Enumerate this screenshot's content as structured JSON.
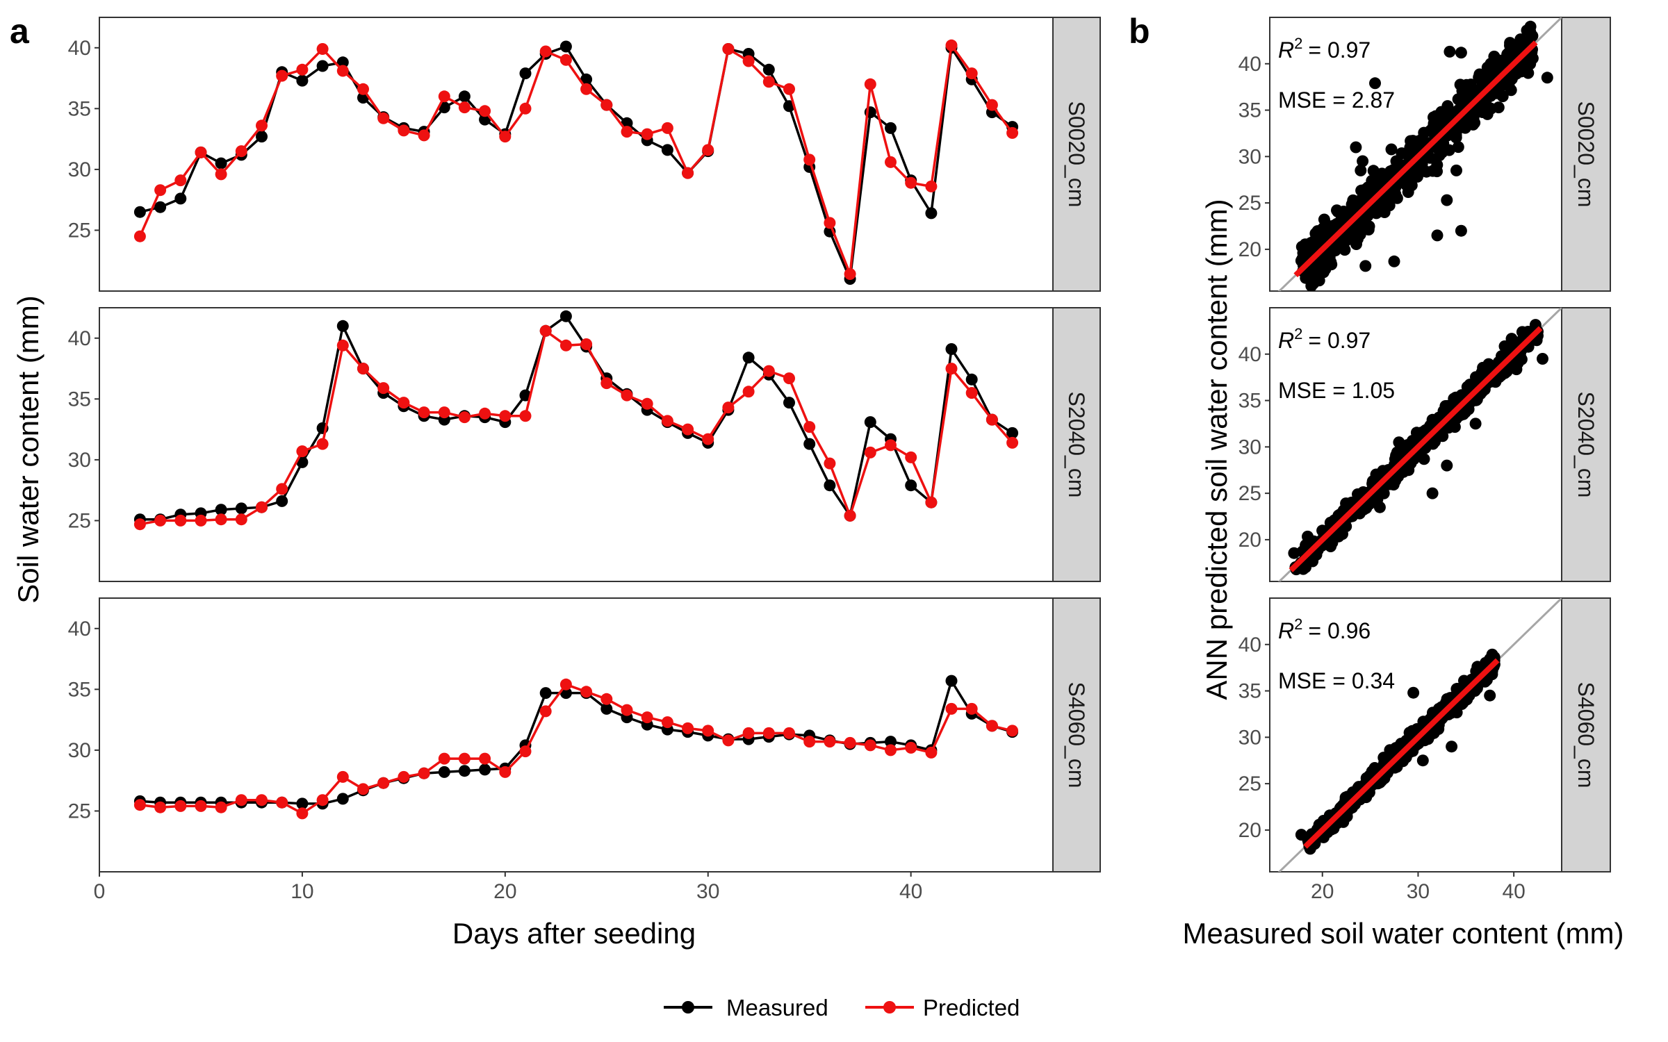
{
  "chart_data": [
    {
      "type": "line",
      "panel_label": "a",
      "xlabel": "Days after seeding",
      "ylabel": "Soil water content (mm)",
      "xlim": [
        0,
        47
      ],
      "ylim": [
        20,
        42.5
      ],
      "x_ticks": [
        0,
        10,
        20,
        30,
        40
      ],
      "y_ticks": [
        25,
        30,
        35,
        40
      ],
      "grid": false,
      "legend": "bottom",
      "legend_entries": [
        {
          "name": "Measured",
          "color": "#000000"
        },
        {
          "name": "Predicted",
          "color": "#ee1111"
        }
      ],
      "facets": [
        {
          "strip": "S0020_cm",
          "x": [
            2,
            3,
            4,
            5,
            6,
            7,
            8,
            9,
            10,
            11,
            12,
            13,
            14,
            15,
            16,
            17,
            18,
            19,
            20,
            21,
            22,
            23,
            24,
            25,
            26,
            27,
            28,
            29,
            30,
            31,
            32,
            33,
            34,
            35,
            36,
            37,
            38,
            39,
            40,
            41,
            42,
            43,
            44,
            45
          ],
          "series": [
            {
              "name": "Measured",
              "values": [
                26.5,
                26.9,
                27.6,
                31.4,
                30.5,
                31.2,
                32.7,
                38.0,
                37.3,
                38.5,
                38.8,
                35.9,
                34.3,
                33.4,
                33.1,
                35.1,
                36.0,
                34.1,
                32.9,
                37.9,
                39.5,
                40.1,
                37.4,
                35.3,
                33.8,
                32.4,
                31.6,
                29.7,
                31.5,
                39.9,
                39.5,
                38.2,
                35.2,
                30.2,
                24.9,
                21.0,
                34.7,
                33.4,
                29.1,
                26.4,
                40.0,
                37.4,
                34.7,
                33.5
              ]
            },
            {
              "name": "Predicted",
              "values": [
                24.5,
                28.3,
                29.1,
                31.4,
                29.6,
                31.5,
                33.6,
                37.7,
                38.2,
                39.9,
                38.1,
                36.6,
                34.2,
                33.2,
                32.8,
                36.0,
                35.1,
                34.8,
                32.7,
                35.0,
                39.7,
                39.0,
                36.6,
                35.3,
                33.1,
                32.9,
                33.4,
                29.7,
                31.6,
                39.9,
                38.9,
                37.2,
                36.6,
                30.8,
                25.6,
                21.4,
                37.0,
                30.6,
                28.9,
                28.6,
                40.2,
                37.9,
                35.3,
                33.0
              ]
            }
          ]
        },
        {
          "strip": "S2040_cm",
          "x": [
            2,
            3,
            4,
            5,
            6,
            7,
            8,
            9,
            10,
            11,
            12,
            13,
            14,
            15,
            16,
            17,
            18,
            19,
            20,
            21,
            22,
            23,
            24,
            25,
            26,
            27,
            28,
            29,
            30,
            31,
            32,
            33,
            34,
            35,
            36,
            37,
            38,
            39,
            40,
            41,
            42,
            43,
            44,
            45
          ],
          "series": [
            {
              "name": "Measured",
              "values": [
                25.1,
                25.1,
                25.5,
                25.6,
                25.9,
                26.0,
                26.1,
                26.6,
                29.8,
                32.6,
                41.0,
                37.5,
                35.5,
                34.4,
                33.6,
                33.3,
                33.6,
                33.5,
                33.1,
                35.3,
                40.6,
                41.8,
                39.3,
                36.7,
                35.4,
                34.1,
                33.1,
                32.2,
                31.4,
                34.1,
                38.4,
                37.0,
                34.7,
                31.3,
                27.9,
                25.4,
                33.1,
                31.7,
                27.9,
                26.5,
                39.1,
                36.6,
                33.3,
                32.2
              ]
            },
            {
              "name": "Predicted",
              "values": [
                24.7,
                25.0,
                25.0,
                25.0,
                25.1,
                25.1,
                26.1,
                27.6,
                30.7,
                31.3,
                39.4,
                37.5,
                35.9,
                34.7,
                33.9,
                33.9,
                33.5,
                33.8,
                33.6,
                33.6,
                40.6,
                39.4,
                39.5,
                36.3,
                35.3,
                34.6,
                33.2,
                32.5,
                31.7,
                34.3,
                35.6,
                37.3,
                36.7,
                32.7,
                29.7,
                25.4,
                30.6,
                31.2,
                30.2,
                26.5,
                37.5,
                35.5,
                33.3,
                31.4
              ]
            }
          ]
        },
        {
          "strip": "S4060_cm",
          "x": [
            2,
            3,
            4,
            5,
            6,
            7,
            8,
            9,
            10,
            11,
            12,
            13,
            14,
            15,
            16,
            17,
            18,
            19,
            20,
            21,
            22,
            23,
            24,
            25,
            26,
            27,
            28,
            29,
            30,
            31,
            32,
            33,
            34,
            35,
            36,
            37,
            38,
            39,
            40,
            41,
            42,
            43,
            44,
            45
          ],
          "series": [
            {
              "name": "Measured",
              "values": [
                25.8,
                25.7,
                25.7,
                25.7,
                25.7,
                25.7,
                25.7,
                25.7,
                25.6,
                25.6,
                26.0,
                26.7,
                27.3,
                27.7,
                28.1,
                28.2,
                28.3,
                28.4,
                28.5,
                30.4,
                34.7,
                34.7,
                34.7,
                33.4,
                32.7,
                32.1,
                31.7,
                31.5,
                31.2,
                30.9,
                30.9,
                31.1,
                31.3,
                31.2,
                30.8,
                30.5,
                30.6,
                30.7,
                30.4,
                30.0,
                35.7,
                33.0,
                32.0,
                31.5
              ]
            },
            {
              "name": "Predicted",
              "values": [
                25.5,
                25.3,
                25.4,
                25.4,
                25.3,
                25.9,
                25.9,
                25.7,
                24.8,
                25.9,
                27.8,
                26.8,
                27.3,
                27.8,
                28.1,
                29.3,
                29.3,
                29.3,
                28.2,
                29.9,
                33.2,
                35.4,
                34.8,
                34.2,
                33.3,
                32.7,
                32.3,
                31.8,
                31.6,
                30.8,
                31.4,
                31.4,
                31.4,
                30.7,
                30.7,
                30.6,
                30.4,
                30.0,
                30.2,
                29.8,
                33.4,
                33.4,
                32.0,
                31.6
              ]
            }
          ]
        }
      ]
    },
    {
      "type": "scatter",
      "panel_label": "b",
      "xlabel": "Measured soil water content (mm)",
      "ylabel": "ANN predicted soil water content (mm)",
      "xlim": [
        14.5,
        45
      ],
      "ylim": [
        15.5,
        45
      ],
      "x_ticks": [
        20,
        30,
        40
      ],
      "y_ticks": [
        20,
        25,
        30,
        35,
        40
      ],
      "grid": false,
      "facets": [
        {
          "strip": "S0020_cm",
          "r2_label": "= 0.97",
          "mse_label": "MSE = 2.87",
          "x_range": [
            17.5,
            42
          ],
          "spread": 1.6,
          "outliers": [
            [
              23.5,
              31.0
            ],
            [
              24.2,
              29.5
            ],
            [
              24.0,
              28.5
            ],
            [
              25.5,
              27.0
            ],
            [
              33.3,
              41.3
            ],
            [
              34.5,
              41.2
            ],
            [
              25.5,
              37.9
            ],
            [
              33.0,
              25.3
            ],
            [
              34.5,
              22.0
            ],
            [
              32.0,
              21.5
            ],
            [
              27.5,
              18.7
            ],
            [
              24.5,
              18.2
            ],
            [
              23.8,
              22.5
            ],
            [
              26.5,
              24.0
            ],
            [
              43.5,
              38.5
            ],
            [
              41.5,
              39.0
            ],
            [
              34.0,
              28.5
            ]
          ]
        },
        {
          "strip": "S2040_cm",
          "r2_label": "= 0.97",
          "mse_label": "MSE = 1.05",
          "x_range": [
            17,
            42.5
          ],
          "spread": 0.9,
          "outliers": [
            [
              31.5,
              25.0
            ],
            [
              28.0,
              30.5
            ],
            [
              29.0,
              27.5
            ],
            [
              33.0,
              28.0
            ],
            [
              26.0,
              23.5
            ],
            [
              36.0,
              32.5
            ],
            [
              43.0,
              39.5
            ]
          ]
        },
        {
          "strip": "S4060_cm",
          "r2_label": "= 0.96",
          "mse_label": "MSE = 0.34",
          "x_range": [
            18.5,
            38
          ],
          "spread": 0.7,
          "outliers": [
            [
              29.5,
              34.8
            ],
            [
              25.3,
              26.0
            ],
            [
              30.5,
              27.5
            ],
            [
              17.8,
              19.5
            ],
            [
              33.5,
              29.0
            ],
            [
              37.5,
              34.5
            ]
          ]
        }
      ],
      "fit_line_color": "#ee1111",
      "identity_line_color": "#a6a6a6"
    }
  ]
}
